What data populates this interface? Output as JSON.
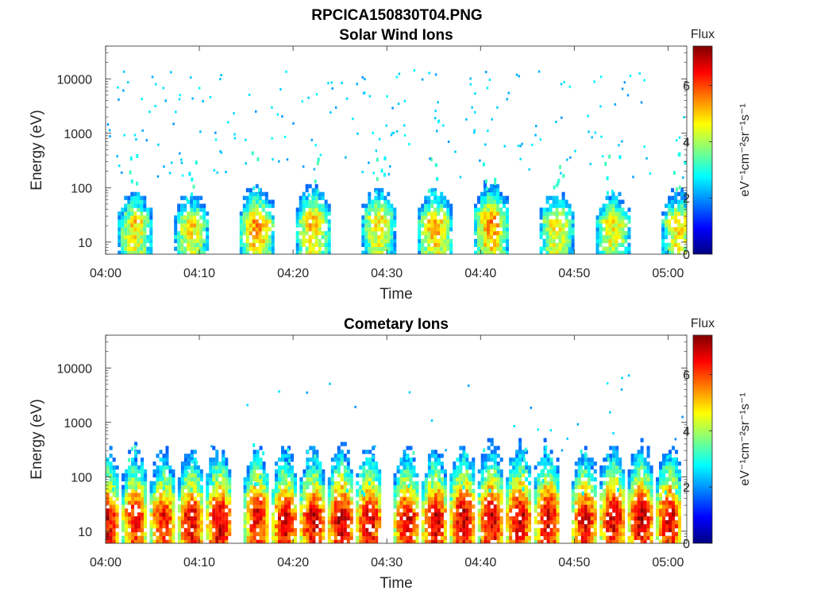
{
  "figure_title": "RPCICA150830T04.PNG",
  "chart_data": [
    {
      "type": "heatmap",
      "title": "Solar Wind Ions",
      "xlabel": "Time",
      "ylabel": "Energy (eV)",
      "y_scale": "log",
      "ylim": [
        6,
        40000
      ],
      "xlim": [
        "04:00",
        "05:02"
      ],
      "x_ticks": [
        "04:00",
        "04:10",
        "04:20",
        "04:30",
        "04:40",
        "04:50",
        "05:00"
      ],
      "y_ticks": [
        "10",
        "100",
        "1000",
        "10000"
      ],
      "colorbar": {
        "title": "Flux",
        "label": "eV⁻¹cm⁻²sr⁻¹s⁻¹",
        "range": [
          0,
          7.4
        ],
        "ticks": [
          "0",
          "2",
          "4",
          "6"
        ],
        "colormap": "jet"
      },
      "bursts": [
        {
          "t": "04:03",
          "peak_energy_eV": 22,
          "level": 4.9
        },
        {
          "t": "04:09",
          "peak_energy_eV": 20,
          "level": 4.8
        },
        {
          "t": "04:16",
          "peak_energy_eV": 22,
          "level": 5.4
        },
        {
          "t": "04:22",
          "peak_energy_eV": 25,
          "level": 5.1
        },
        {
          "t": "04:29",
          "peak_energy_eV": 25,
          "level": 4.9
        },
        {
          "t": "04:35",
          "peak_energy_eV": 22,
          "level": 5.2
        },
        {
          "t": "04:41",
          "peak_energy_eV": 25,
          "level": 5.4
        },
        {
          "t": "04:48",
          "peak_energy_eV": 22,
          "level": 4.9
        },
        {
          "t": "04:54",
          "peak_energy_eV": 22,
          "level": 4.8
        },
        {
          "t": "05:01",
          "peak_energy_eV": 22,
          "level": 4.9
        }
      ],
      "scatter_count": 200,
      "scatter_energy_range_eV": [
        150,
        15000
      ],
      "scatter_level": 2.4
    },
    {
      "type": "heatmap",
      "title": "Cometary Ions",
      "xlabel": "Time",
      "ylabel": "Energy (eV)",
      "y_scale": "log",
      "ylim": [
        6,
        40000
      ],
      "xlim": [
        "04:00",
        "05:02"
      ],
      "x_ticks": [
        "04:00",
        "04:10",
        "04:20",
        "04:30",
        "04:40",
        "04:50",
        "05:00"
      ],
      "y_ticks": [
        "10",
        "100",
        "1000",
        "10000"
      ],
      "colorbar": {
        "title": "Flux",
        "label": "eV⁻¹cm⁻²sr⁻¹s⁻¹",
        "range": [
          0,
          7.4
        ],
        "ticks": [
          "0",
          "2",
          "4",
          "6"
        ],
        "colormap": "jet"
      },
      "bursts": [
        {
          "t": "04:00",
          "peak_energy_eV": 18,
          "level": 6.8
        },
        {
          "t": "04:03",
          "peak_energy_eV": 20,
          "level": 6.5
        },
        {
          "t": "04:06",
          "peak_energy_eV": 18,
          "level": 6.6
        },
        {
          "t": "04:09",
          "peak_energy_eV": 18,
          "level": 6.8
        },
        {
          "t": "04:12",
          "peak_energy_eV": 18,
          "level": 7.0
        },
        {
          "t": "04:16",
          "peak_energy_eV": 22,
          "level": 6.6
        },
        {
          "t": "04:19",
          "peak_energy_eV": 18,
          "level": 6.8
        },
        {
          "t": "04:22",
          "peak_energy_eV": 18,
          "level": 6.9
        },
        {
          "t": "04:25",
          "peak_energy_eV": 18,
          "level": 7.1
        },
        {
          "t": "04:28",
          "peak_energy_eV": 18,
          "level": 6.9
        },
        {
          "t": "04:32",
          "peak_energy_eV": 18,
          "level": 6.8
        },
        {
          "t": "04:35",
          "peak_energy_eV": 18,
          "level": 6.9
        },
        {
          "t": "04:38",
          "peak_energy_eV": 20,
          "level": 7.0
        },
        {
          "t": "04:41",
          "peak_energy_eV": 20,
          "level": 7.0
        },
        {
          "t": "04:44",
          "peak_energy_eV": 20,
          "level": 6.9
        },
        {
          "t": "04:47",
          "peak_energy_eV": 20,
          "level": 6.9
        },
        {
          "t": "04:51",
          "peak_energy_eV": 18,
          "level": 6.8
        },
        {
          "t": "04:54",
          "peak_energy_eV": 20,
          "level": 6.9
        },
        {
          "t": "04:57",
          "peak_energy_eV": 20,
          "level": 7.0
        },
        {
          "t": "05:00",
          "peak_energy_eV": 20,
          "level": 6.8
        }
      ],
      "scatter_count": 26,
      "scatter_energy_range_eV": [
        150,
        8000
      ],
      "scatter_level": 2.3
    }
  ]
}
